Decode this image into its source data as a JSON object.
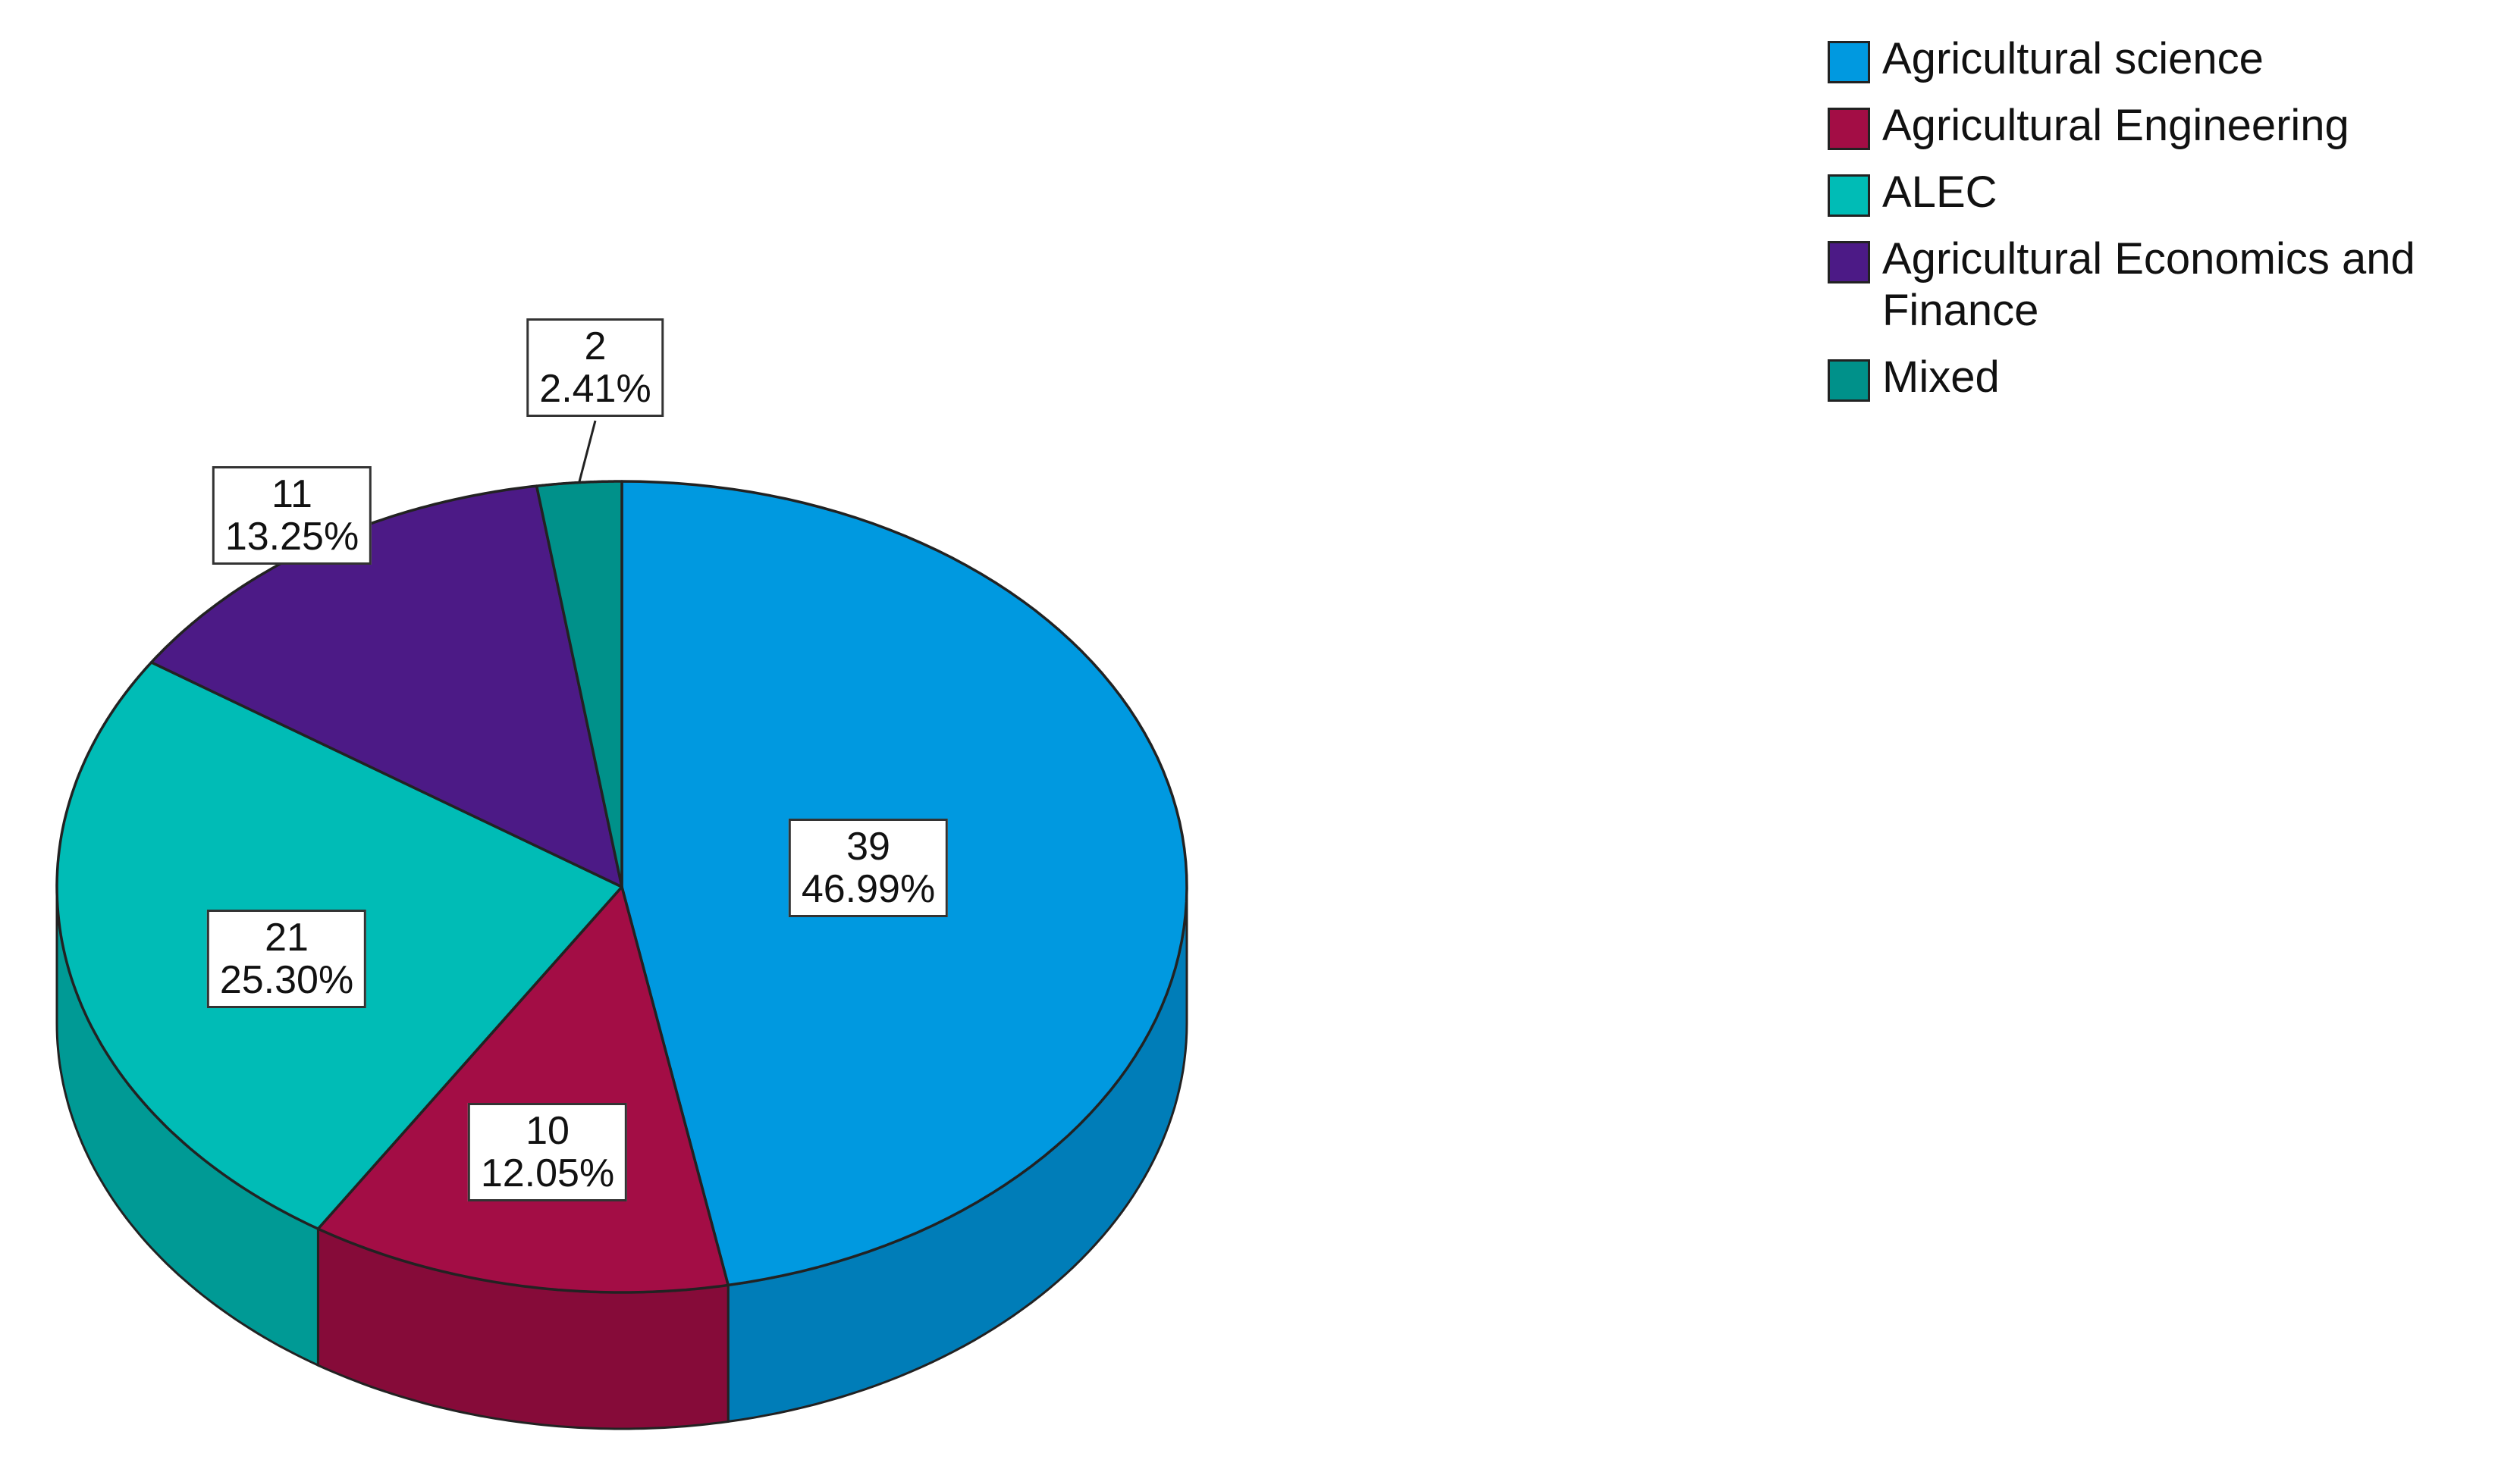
{
  "chart_data": {
    "type": "pie",
    "title": "",
    "categories": [
      "Agricultural science",
      "Agricultural Engineering",
      "ALEC",
      "Agricultural Economics and Finance",
      "Mixed"
    ],
    "values": [
      39,
      10,
      21,
      11,
      2
    ],
    "percent_labels": [
      "46.99%",
      "12.05%",
      "25.30%",
      "13.25%",
      "2.41%"
    ],
    "value_labels": [
      "39",
      "10",
      "21",
      "11",
      "2"
    ],
    "colors": [
      "#0099e0",
      "#a30d45",
      "#00bcb6",
      "#4c1a86",
      "#00918a"
    ],
    "legend_position": "top-right",
    "style": "3d"
  },
  "legend": {
    "items": [
      {
        "label": "Agricultural science",
        "color": "#0099e0"
      },
      {
        "label": "Agricultural Engineering",
        "color": "#a30d45"
      },
      {
        "label": "ALEC",
        "color": "#00bcb6"
      },
      {
        "label": "Agricultural Economics and Finance",
        "color": "#4c1a86"
      },
      {
        "label": "Mixed",
        "color": "#00918a"
      }
    ]
  }
}
